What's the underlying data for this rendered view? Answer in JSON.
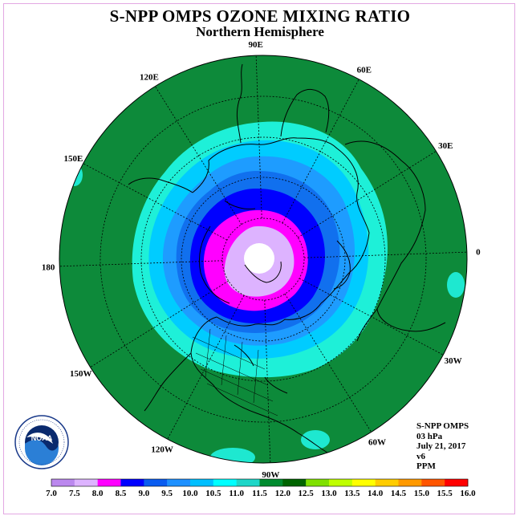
{
  "title": "S-NPP OMPS OZONE MIXING RATIO",
  "subtitle": "Northern Hemisphere",
  "longitude_labels": [
    "90E",
    "60E",
    "30E",
    "0",
    "30W",
    "60W",
    "90W",
    "120W",
    "150W",
    "180",
    "150E",
    "120E"
  ],
  "info": {
    "instrument": "S-NPP OMPS",
    "level": "03 hPa",
    "date": "July 21, 2017",
    "version": "v6",
    "units": "PPM"
  },
  "logo": {
    "name": "NOAA",
    "ring_text": "NATIONAL OCEANIC AND ATMOSPHERIC ADMINISTRATION • U.S. DEPARTMENT OF COMMERCE"
  },
  "colorbar": {
    "ticks": [
      "7.0",
      "7.5",
      "8.0",
      "8.5",
      "9.0",
      "9.5",
      "10.0",
      "10.5",
      "11.0",
      "11.5",
      "12.0",
      "12.5",
      "13.0",
      "13.5",
      "14.0",
      "14.5",
      "15.0",
      "15.5",
      "16.0"
    ],
    "colors": [
      "#bb88ee",
      "#ddb3ff",
      "#ff00ff",
      "#0000ff",
      "#0a5cf0",
      "#1e90ff",
      "#00bfff",
      "#00ffff",
      "#1ed6c8",
      "#008b2e",
      "#006400",
      "#7fe000",
      "#bfff00",
      "#ffff00",
      "#ffcc00",
      "#ff9900",
      "#ff5500",
      "#ff0000",
      "#8b4513"
    ]
  },
  "colors": {
    "frame": "#e3a8e3",
    "ocean_field": "#0d8a3a"
  }
}
